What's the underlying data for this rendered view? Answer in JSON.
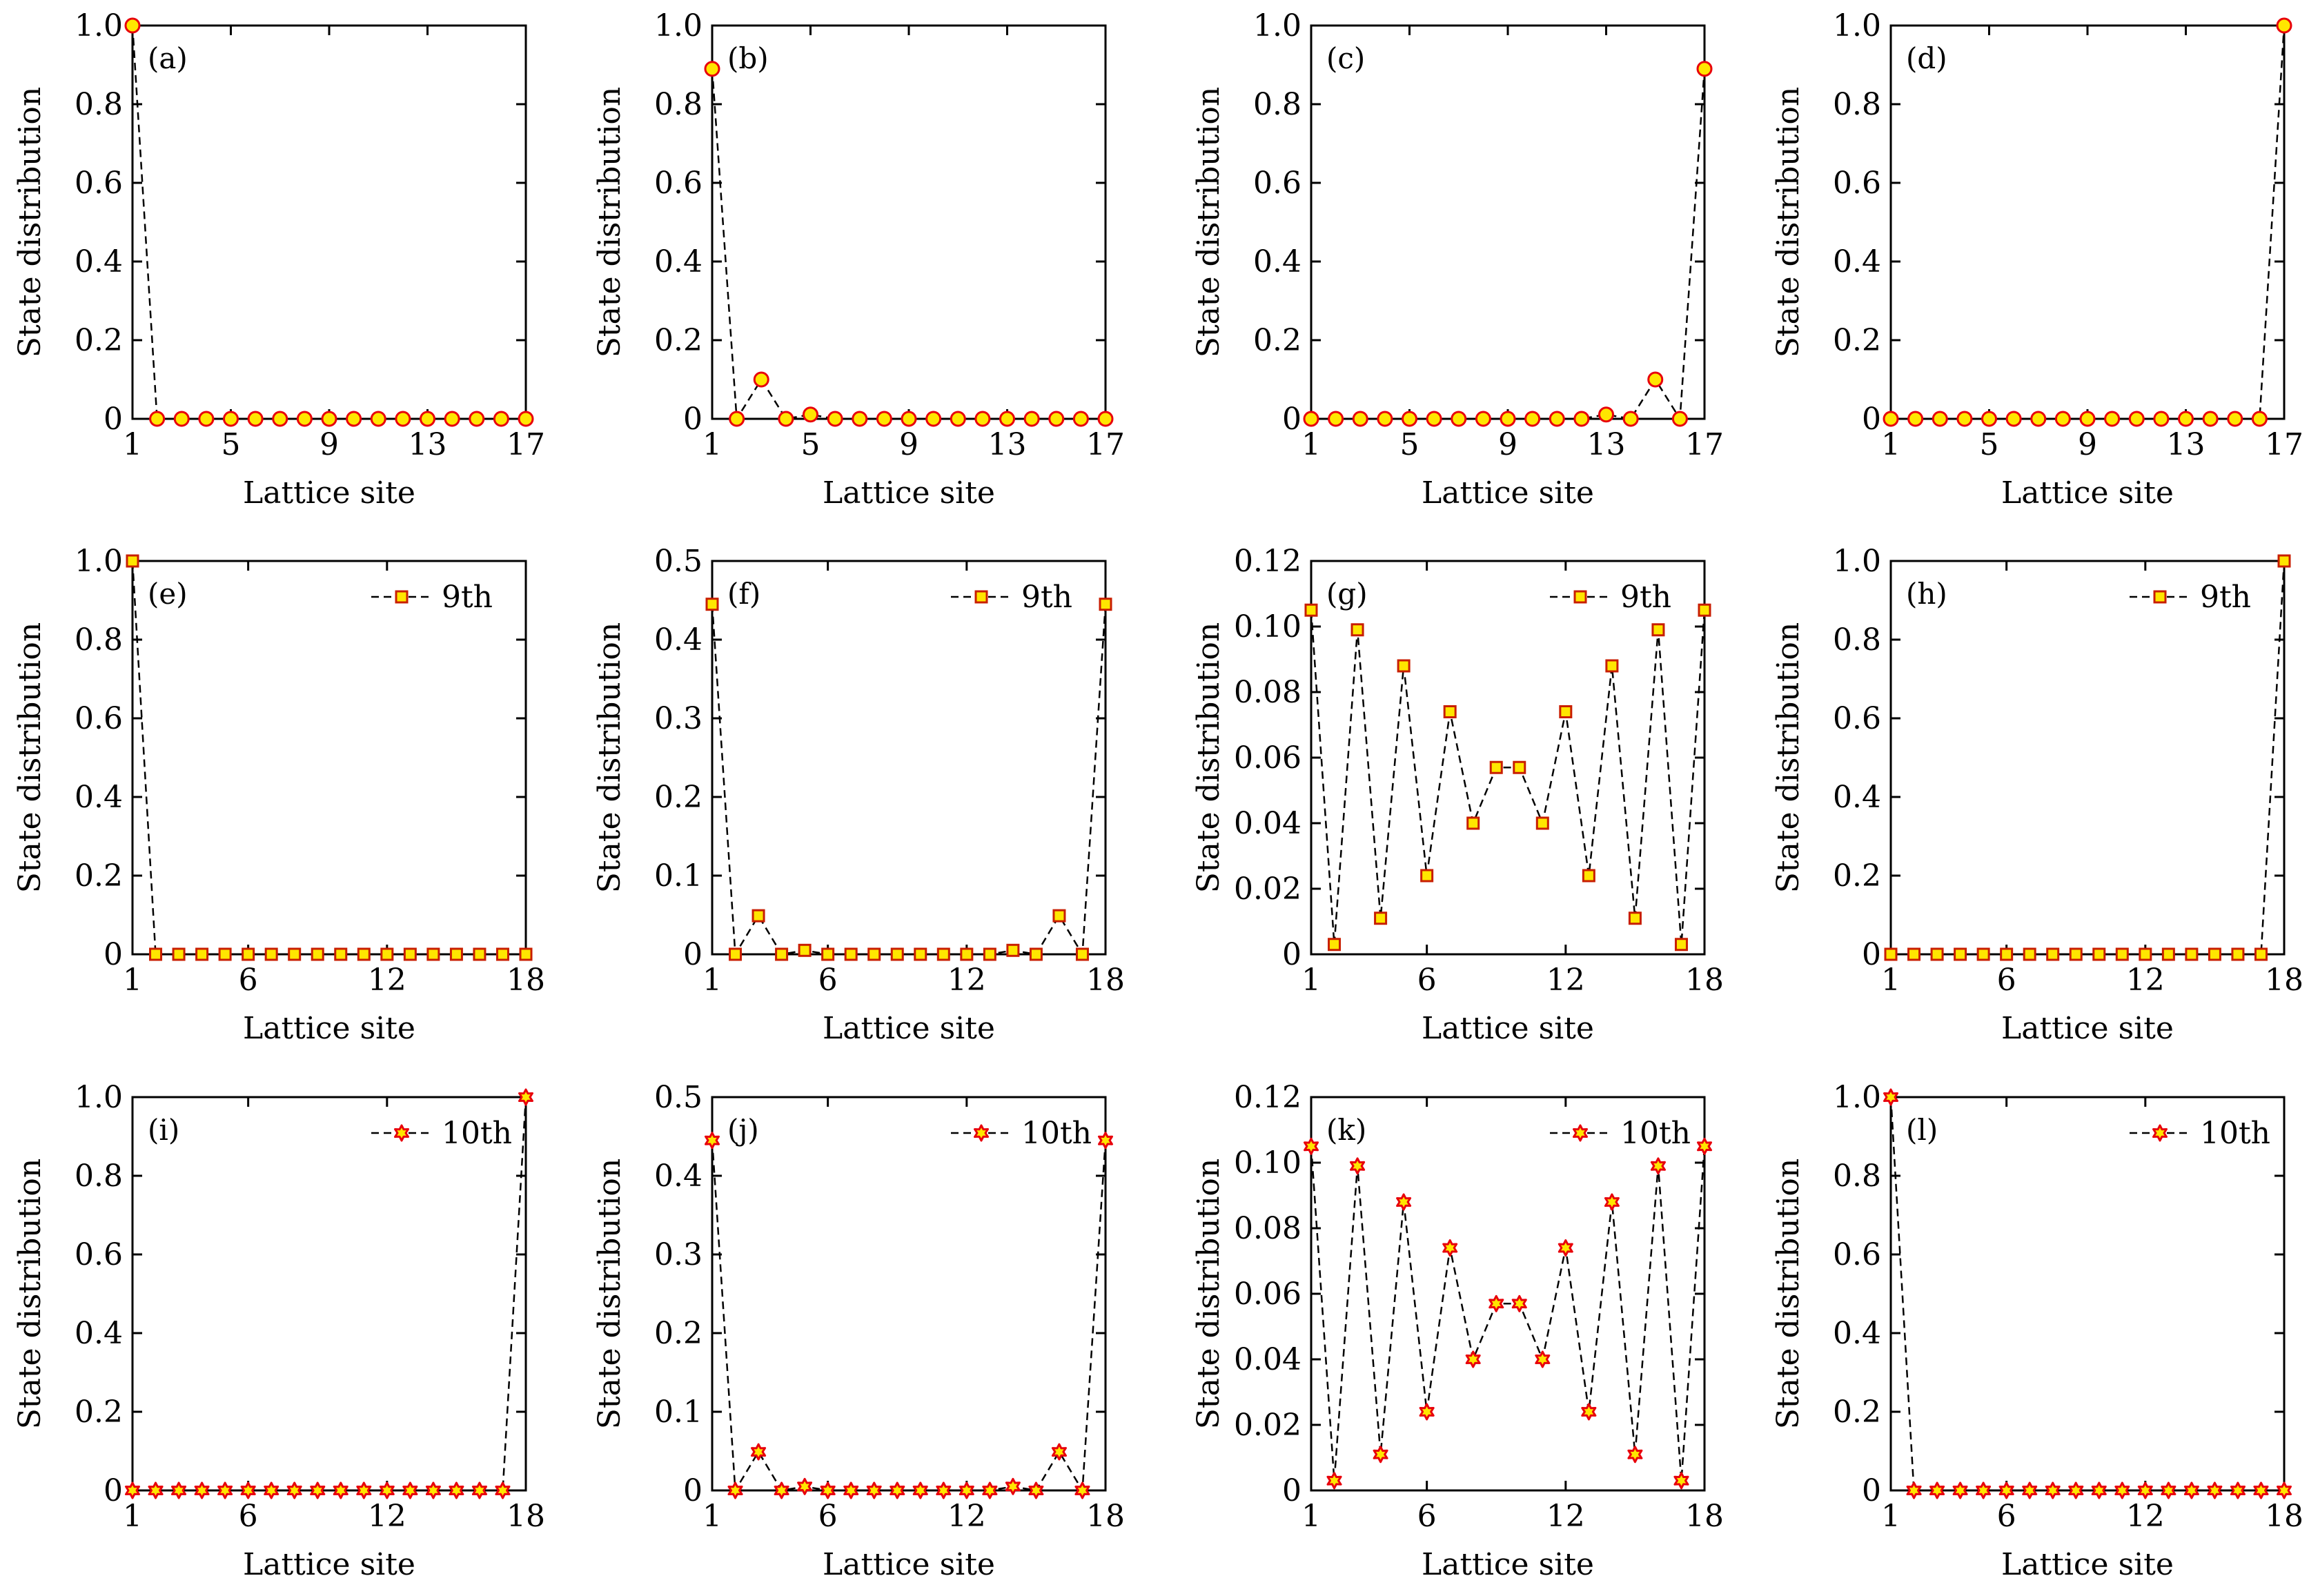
{
  "chart_data": [
    {
      "type": "line",
      "panel": "(a)",
      "x": [
        1,
        2,
        3,
        4,
        5,
        6,
        7,
        8,
        9,
        10,
        11,
        12,
        13,
        14,
        15,
        16,
        17
      ],
      "series": [
        {
          "name": "",
          "marker": "circle",
          "values": [
            1.0,
            0,
            0,
            0,
            0,
            0,
            0,
            0,
            0,
            0,
            0,
            0,
            0,
            0,
            0,
            0,
            0
          ]
        }
      ],
      "xticks": [
        1,
        5,
        9,
        13,
        17
      ],
      "xlim": [
        1,
        17
      ],
      "yticks": [
        "0",
        "0.2",
        "0.4",
        "0.6",
        "0.8",
        "1.0"
      ],
      "ylim": [
        0,
        1.0
      ],
      "xlabel": "Lattice site",
      "ylabel": "State distribution",
      "legend": ""
    },
    {
      "type": "line",
      "panel": "(b)",
      "x": [
        1,
        2,
        3,
        4,
        5,
        6,
        7,
        8,
        9,
        10,
        11,
        12,
        13,
        14,
        15,
        16,
        17
      ],
      "series": [
        {
          "name": "",
          "marker": "circle",
          "values": [
            0.89,
            0,
            0.1,
            0,
            0.011,
            0,
            0,
            0,
            0,
            0,
            0,
            0,
            0,
            0,
            0,
            0,
            0
          ]
        }
      ],
      "xticks": [
        1,
        5,
        9,
        13,
        17
      ],
      "xlim": [
        1,
        17
      ],
      "yticks": [
        "0",
        "0.2",
        "0.4",
        "0.6",
        "0.8",
        "1.0"
      ],
      "ylim": [
        0,
        1.0
      ],
      "xlabel": "Lattice site",
      "ylabel": "State distribution",
      "legend": ""
    },
    {
      "type": "line",
      "panel": "(c)",
      "x": [
        1,
        2,
        3,
        4,
        5,
        6,
        7,
        8,
        9,
        10,
        11,
        12,
        13,
        14,
        15,
        16,
        17
      ],
      "series": [
        {
          "name": "",
          "marker": "circle",
          "values": [
            0,
            0,
            0,
            0,
            0,
            0,
            0,
            0,
            0,
            0,
            0,
            0,
            0.011,
            0,
            0.1,
            0,
            0.89
          ]
        }
      ],
      "xticks": [
        1,
        5,
        9,
        13,
        17
      ],
      "xlim": [
        1,
        17
      ],
      "yticks": [
        "0",
        "0.2",
        "0.4",
        "0.6",
        "0.8",
        "1.0"
      ],
      "ylim": [
        0,
        1.0
      ],
      "xlabel": "Lattice site",
      "ylabel": "State distribution",
      "legend": ""
    },
    {
      "type": "line",
      "panel": "(d)",
      "x": [
        1,
        2,
        3,
        4,
        5,
        6,
        7,
        8,
        9,
        10,
        11,
        12,
        13,
        14,
        15,
        16,
        17
      ],
      "series": [
        {
          "name": "",
          "marker": "circle",
          "values": [
            0,
            0,
            0,
            0,
            0,
            0,
            0,
            0,
            0,
            0,
            0,
            0,
            0,
            0,
            0,
            0,
            1.0
          ]
        }
      ],
      "xticks": [
        1,
        5,
        9,
        13,
        17
      ],
      "xlim": [
        1,
        17
      ],
      "yticks": [
        "0",
        "0.2",
        "0.4",
        "0.6",
        "0.8",
        "1.0"
      ],
      "ylim": [
        0,
        1.0
      ],
      "xlabel": "Lattice site",
      "ylabel": "State distribution",
      "legend": ""
    },
    {
      "type": "line",
      "panel": "(e)",
      "x": [
        1,
        2,
        3,
        4,
        5,
        6,
        7,
        8,
        9,
        10,
        11,
        12,
        13,
        14,
        15,
        16,
        17,
        18
      ],
      "series": [
        {
          "name": "9th",
          "marker": "square",
          "values": [
            1.0,
            0,
            0,
            0,
            0,
            0,
            0,
            0,
            0,
            0,
            0,
            0,
            0,
            0,
            0,
            0,
            0,
            0
          ]
        }
      ],
      "xticks": [
        1,
        6,
        12,
        18
      ],
      "xlim": [
        1,
        18
      ],
      "yticks": [
        "0",
        "0.2",
        "0.4",
        "0.6",
        "0.8",
        "1.0"
      ],
      "ylim": [
        0,
        1.0
      ],
      "xlabel": "Lattice site",
      "ylabel": "State distribution",
      "legend": "9th"
    },
    {
      "type": "line",
      "panel": "(f)",
      "x": [
        1,
        2,
        3,
        4,
        5,
        6,
        7,
        8,
        9,
        10,
        11,
        12,
        13,
        14,
        15,
        16,
        17,
        18
      ],
      "series": [
        {
          "name": "9th",
          "marker": "square",
          "values": [
            0.445,
            0,
            0.049,
            0,
            0.005,
            0,
            0,
            0,
            0,
            0,
            0,
            0,
            0,
            0.005,
            0,
            0.049,
            0,
            0.445
          ]
        }
      ],
      "xticks": [
        1,
        6,
        12,
        18
      ],
      "xlim": [
        1,
        18
      ],
      "yticks": [
        "0",
        "0.1",
        "0.2",
        "0.3",
        "0.4",
        "0.5"
      ],
      "ylim": [
        0,
        0.5
      ],
      "xlabel": "Lattice site",
      "ylabel": "State distribution",
      "legend": "9th"
    },
    {
      "type": "line",
      "panel": "(g)",
      "x": [
        1,
        2,
        3,
        4,
        5,
        6,
        7,
        8,
        9,
        10,
        11,
        12,
        13,
        14,
        15,
        16,
        17,
        18
      ],
      "series": [
        {
          "name": "9th",
          "marker": "square",
          "values": [
            0.105,
            0.003,
            0.099,
            0.011,
            0.088,
            0.024,
            0.074,
            0.04,
            0.057,
            0.057,
            0.04,
            0.074,
            0.024,
            0.088,
            0.011,
            0.099,
            0.003,
            0.105
          ]
        }
      ],
      "xticks": [
        1,
        6,
        12,
        18
      ],
      "xlim": [
        1,
        18
      ],
      "yticks": [
        "0",
        "0.02",
        "0.04",
        "0.06",
        "0.08",
        "0.10",
        "0.12"
      ],
      "ylim": [
        0,
        0.12
      ],
      "xlabel": "Lattice site",
      "ylabel": "State distribution",
      "legend": "9th"
    },
    {
      "type": "line",
      "panel": "(h)",
      "x": [
        1,
        2,
        3,
        4,
        5,
        6,
        7,
        8,
        9,
        10,
        11,
        12,
        13,
        14,
        15,
        16,
        17,
        18
      ],
      "series": [
        {
          "name": "9th",
          "marker": "square",
          "values": [
            0,
            0,
            0,
            0,
            0,
            0,
            0,
            0,
            0,
            0,
            0,
            0,
            0,
            0,
            0,
            0,
            0,
            1.0
          ]
        }
      ],
      "xticks": [
        1,
        6,
        12,
        18
      ],
      "xlim": [
        1,
        18
      ],
      "yticks": [
        "0",
        "0.2",
        "0.4",
        "0.6",
        "0.8",
        "1.0"
      ],
      "ylim": [
        0,
        1.0
      ],
      "xlabel": "Lattice site",
      "ylabel": "State distribution",
      "legend": "9th"
    },
    {
      "type": "line",
      "panel": "(i)",
      "x": [
        1,
        2,
        3,
        4,
        5,
        6,
        7,
        8,
        9,
        10,
        11,
        12,
        13,
        14,
        15,
        16,
        17,
        18
      ],
      "series": [
        {
          "name": "10th",
          "marker": "star",
          "values": [
            0,
            0,
            0,
            0,
            0,
            0,
            0,
            0,
            0,
            0,
            0,
            0,
            0,
            0,
            0,
            0,
            0,
            1.0
          ]
        }
      ],
      "xticks": [
        1,
        6,
        12,
        18
      ],
      "xlim": [
        1,
        18
      ],
      "yticks": [
        "0",
        "0.2",
        "0.4",
        "0.6",
        "0.8",
        "1.0"
      ],
      "ylim": [
        0,
        1.0
      ],
      "xlabel": "Lattice site",
      "ylabel": "State distribution",
      "legend": "10th"
    },
    {
      "type": "line",
      "panel": "(j)",
      "x": [
        1,
        2,
        3,
        4,
        5,
        6,
        7,
        8,
        9,
        10,
        11,
        12,
        13,
        14,
        15,
        16,
        17,
        18
      ],
      "series": [
        {
          "name": "10th",
          "marker": "star",
          "values": [
            0.445,
            0,
            0.049,
            0,
            0.005,
            0,
            0,
            0,
            0,
            0,
            0,
            0,
            0,
            0.005,
            0,
            0.049,
            0,
            0.445
          ]
        }
      ],
      "xticks": [
        1,
        6,
        12,
        18
      ],
      "xlim": [
        1,
        18
      ],
      "yticks": [
        "0",
        "0.1",
        "0.2",
        "0.3",
        "0.4",
        "0.5"
      ],
      "ylim": [
        0,
        0.5
      ],
      "xlabel": "Lattice site",
      "ylabel": "State distribution",
      "legend": "10th"
    },
    {
      "type": "line",
      "panel": "(k)",
      "x": [
        1,
        2,
        3,
        4,
        5,
        6,
        7,
        8,
        9,
        10,
        11,
        12,
        13,
        14,
        15,
        16,
        17,
        18
      ],
      "series": [
        {
          "name": "10th",
          "marker": "star",
          "values": [
            0.105,
            0.003,
            0.099,
            0.011,
            0.088,
            0.024,
            0.074,
            0.04,
            0.057,
            0.057,
            0.04,
            0.074,
            0.024,
            0.088,
            0.011,
            0.099,
            0.003,
            0.105
          ]
        }
      ],
      "xticks": [
        1,
        6,
        12,
        18
      ],
      "xlim": [
        1,
        18
      ],
      "yticks": [
        "0",
        "0.02",
        "0.04",
        "0.06",
        "0.08",
        "0.10",
        "0.12"
      ],
      "ylim": [
        0,
        0.12
      ],
      "xlabel": "Lattice site",
      "ylabel": "State distribution",
      "legend": "10th"
    },
    {
      "type": "line",
      "panel": "(l)",
      "x": [
        1,
        2,
        3,
        4,
        5,
        6,
        7,
        8,
        9,
        10,
        11,
        12,
        13,
        14,
        15,
        16,
        17,
        18
      ],
      "series": [
        {
          "name": "10th",
          "marker": "star",
          "values": [
            1.0,
            0,
            0,
            0,
            0,
            0,
            0,
            0,
            0,
            0,
            0,
            0,
            0,
            0,
            0,
            0,
            0,
            0
          ]
        }
      ],
      "xticks": [
        1,
        6,
        12,
        18
      ],
      "xlim": [
        1,
        18
      ],
      "yticks": [
        "0",
        "0.2",
        "0.4",
        "0.6",
        "0.8",
        "1.0"
      ],
      "ylim": [
        0,
        1.0
      ],
      "xlabel": "Lattice site",
      "ylabel": "State distribution",
      "legend": "10th"
    }
  ],
  "colors": {
    "marker_fill": "#FFE600",
    "marker_stroke_circle": "#E8000B",
    "marker_stroke_square": "#C81E00",
    "marker_stroke_star": "#E8000B",
    "line": "#000000"
  }
}
